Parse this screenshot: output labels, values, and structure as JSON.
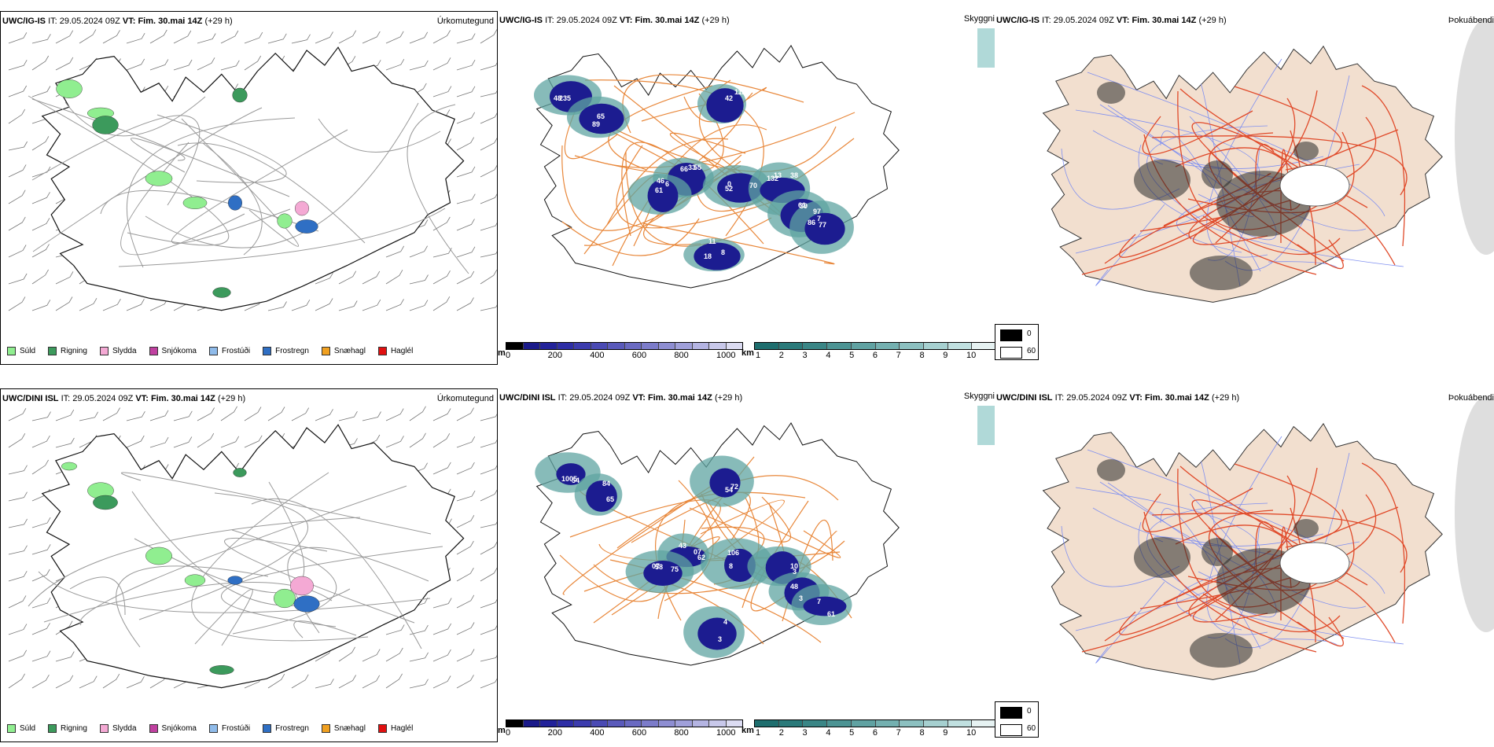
{
  "rows": [
    {
      "model": "UWC/IG-IS",
      "it_label": "IT:",
      "it_value": "29.05.2024 09Z",
      "vt_label": "VT:",
      "vt_value": "Fim. 30.mai 14Z",
      "lead": "(+29 h)",
      "cloud_labels": [
        "33",
        "6",
        "0",
        "13",
        "97",
        "86",
        "18",
        "235",
        "89",
        "42",
        "55",
        "61",
        "70",
        "132",
        "61",
        "77",
        "11",
        "48",
        "65",
        "112",
        "66",
        "46",
        "52",
        "38",
        "39",
        "7",
        "8"
      ]
    },
    {
      "model": "UWC/DINI ISL",
      "it_label": "IT:",
      "it_value": "29.05.2024 09Z",
      "vt_label": "VT:",
      "vt_value": "Fim. 30.mai 14Z",
      "lead": "(+29 h)",
      "cloud_labels": [
        "07",
        "07",
        "8",
        "3",
        "3",
        "61",
        "4",
        "54",
        "65",
        "72",
        "62",
        "75",
        "106",
        "10",
        "48",
        "7",
        "3",
        "1005",
        "84",
        "54",
        "43",
        "58"
      ]
    }
  ],
  "panel_titles": {
    "precip": "Úrkomutegund",
    "cloud": "Skyggni",
    "fog": "Þokuábendi"
  },
  "precip_legend": [
    {
      "label": "Súld",
      "color": "#90ee90"
    },
    {
      "label": "Rigning",
      "color": "#3c9a5c"
    },
    {
      "label": "Slydda",
      "color": "#f4a9d4"
    },
    {
      "label": "Snjókoma",
      "color": "#c040a0"
    },
    {
      "label": "Frostúði",
      "color": "#8fbbea"
    },
    {
      "label": "Frostregn",
      "color": "#2f6fc4"
    },
    {
      "label": "Snæhagl",
      "color": "#f0a020"
    },
    {
      "label": "Haglél",
      "color": "#e01010"
    }
  ],
  "colorbar_m": {
    "unit": "m",
    "ticks": [
      "0",
      "200",
      "400",
      "600",
      "800",
      "1000"
    ],
    "colors": [
      "#000000",
      "#1a1a8a",
      "#22229a",
      "#2e2ea6",
      "#3c3cae",
      "#4a4ab4",
      "#5a5abb",
      "#6a6ac2",
      "#7c7cca",
      "#8e8ed2",
      "#a0a0da",
      "#b4b4e2",
      "#c8c8ea",
      "#dcdcf2"
    ]
  },
  "colorbar_km": {
    "unit": "km",
    "ticks": [
      "1",
      "2",
      "3",
      "4",
      "5",
      "6",
      "7",
      "8",
      "9",
      "10"
    ],
    "colors": [
      "#1e6e6e",
      "#2a7a7a",
      "#3a8686",
      "#4c9494",
      "#60a2a2",
      "#74b0b0",
      "#8cc0c0",
      "#a6d0d0",
      "#c0e0e0",
      "#e6f2f2"
    ]
  },
  "fog_legend": [
    {
      "label": "0",
      "color": "#000000"
    },
    {
      "label": "60",
      "color": "#ffffff"
    }
  ],
  "colors": {
    "land_fog": "#f2dfcf",
    "roads_orange": "#e8873a",
    "roads_red": "#e04a2a",
    "rivers": "#7f8ff0",
    "coast": "#000000",
    "precip_border": "#000000"
  }
}
